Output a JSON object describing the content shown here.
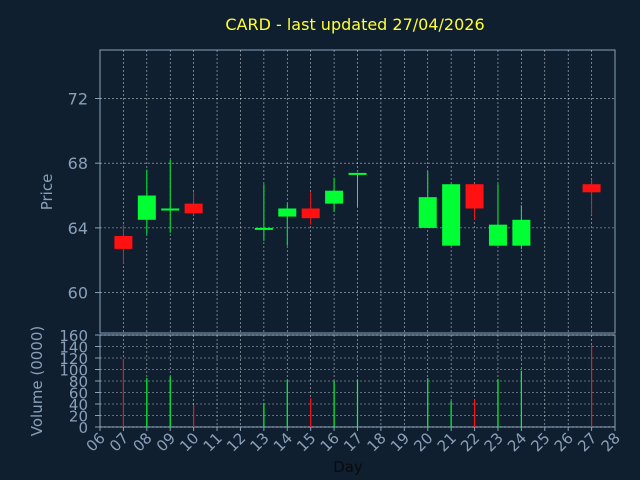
{
  "chart_data": [
    {
      "type": "candlestick",
      "title": "CARD - last updated 27/04/2026",
      "ylabel": "Price",
      "ylim": [
        57.5,
        75
      ],
      "yticks": [
        "60",
        "64",
        "68",
        "72"
      ],
      "grid": true,
      "categories": [
        "06",
        "07",
        "08",
        "09",
        "10",
        "11",
        "12",
        "13",
        "14",
        "15",
        "16",
        "17",
        "18",
        "19",
        "20",
        "21",
        "22",
        "23",
        "24",
        "25",
        "26",
        "27",
        "28"
      ],
      "candles": [
        {
          "day": "07",
          "open": 63.5,
          "high": 64.2,
          "low": 61.8,
          "close": 62.7
        },
        {
          "day": "08",
          "open": 64.5,
          "high": 67.6,
          "low": 63.6,
          "close": 66.0
        },
        {
          "day": "09",
          "open": 65.1,
          "high": 68.2,
          "low": 63.7,
          "close": 65.2
        },
        {
          "day": "10",
          "open": 65.5,
          "high": 66.2,
          "low": 64.8,
          "close": 64.9
        },
        {
          "day": "13",
          "open": 63.9,
          "high": 66.7,
          "low": 63.2,
          "close": 64.0
        },
        {
          "day": "14",
          "open": 64.7,
          "high": 65.5,
          "low": 62.9,
          "close": 65.2
        },
        {
          "day": "15",
          "open": 65.2,
          "high": 66.2,
          "low": 64.2,
          "close": 64.6
        },
        {
          "day": "16",
          "open": 65.5,
          "high": 67.1,
          "low": 65.0,
          "close": 66.3
        },
        {
          "day": "17",
          "open": 67.3,
          "high": 67.4,
          "low": 65.3,
          "close": 67.4
        },
        {
          "day": "20",
          "open": 64.0,
          "high": 67.5,
          "low": 64.0,
          "close": 65.9
        },
        {
          "day": "21",
          "open": 62.9,
          "high": 66.7,
          "low": 62.9,
          "close": 66.7
        },
        {
          "day": "22",
          "open": 66.7,
          "high": 66.7,
          "low": 64.5,
          "close": 65.2
        },
        {
          "day": "23",
          "open": 62.9,
          "high": 66.7,
          "low": 62.9,
          "close": 64.2
        },
        {
          "day": "24",
          "open": 62.9,
          "high": 65.4,
          "low": 62.7,
          "close": 64.5
        },
        {
          "day": "27",
          "open": 66.7,
          "high": 67.0,
          "low": 64.8,
          "close": 66.2
        }
      ]
    },
    {
      "type": "bar",
      "ylabel": "Volume (0000)",
      "xlabel": "Day",
      "ylim": [
        0,
        160
      ],
      "yticks": [
        "0",
        "20",
        "40",
        "60",
        "80",
        "100",
        "120",
        "140",
        "160"
      ],
      "grid": true,
      "series": [
        {
          "values": [
            {
              "day": "07",
              "value": 118,
              "direction": "down"
            },
            {
              "day": "08",
              "value": 85,
              "direction": "up"
            },
            {
              "day": "09",
              "value": 88,
              "direction": "up"
            },
            {
              "day": "10",
              "value": 38,
              "direction": "down"
            },
            {
              "day": "13",
              "value": 42,
              "direction": "up"
            },
            {
              "day": "14",
              "value": 82,
              "direction": "up"
            },
            {
              "day": "15",
              "value": 50,
              "direction": "down"
            },
            {
              "day": "16",
              "value": 80,
              "direction": "up"
            },
            {
              "day": "17",
              "value": 82,
              "direction": "up"
            },
            {
              "day": "20",
              "value": 85,
              "direction": "up"
            },
            {
              "day": "21",
              "value": 45,
              "direction": "up"
            },
            {
              "day": "22",
              "value": 48,
              "direction": "down"
            },
            {
              "day": "23",
              "value": 83,
              "direction": "up"
            },
            {
              "day": "24",
              "value": 98,
              "direction": "up"
            },
            {
              "day": "27",
              "value": 142,
              "direction": "down"
            }
          ]
        }
      ]
    }
  ],
  "colors": {
    "background": "#0f1f30",
    "axis": "#8aa0b8",
    "grid": "#ffffff",
    "title": "#ffff33",
    "label": "#8aa0b8",
    "up": "#00ff33",
    "down": "#ff1111"
  }
}
